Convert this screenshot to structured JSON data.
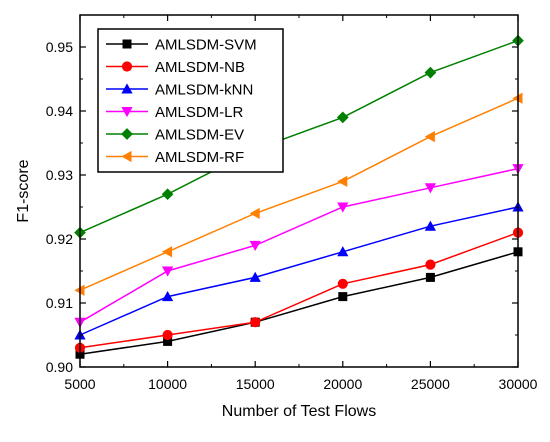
{
  "chart_data": {
    "type": "line",
    "title": "",
    "xlabel": "Number of Test Flows",
    "ylabel": "F1-score",
    "x": [
      5000,
      10000,
      15000,
      20000,
      25000,
      30000
    ],
    "xlim": [
      5000,
      30000
    ],
    "ylim": [
      0.9,
      0.955
    ],
    "x_ticks": [
      "5000",
      "10000",
      "15000",
      "20000",
      "25000",
      "30000"
    ],
    "y_ticks": [
      "0.90",
      "0.91",
      "0.92",
      "0.93",
      "0.94",
      "0.95"
    ],
    "grid": false,
    "legend_position": "top-left",
    "series": [
      {
        "name": "AMLSDM-SVM",
        "color": "#000000",
        "marker": "square",
        "values": [
          0.902,
          0.904,
          0.907,
          0.911,
          0.914,
          0.918
        ]
      },
      {
        "name": "AMLSDM-NB",
        "color": "#ff0000",
        "marker": "circle",
        "values": [
          0.903,
          0.905,
          0.907,
          0.913,
          0.916,
          0.921
        ]
      },
      {
        "name": "AMLSDM-kNN",
        "color": "#0000ff",
        "marker": "triangle-up",
        "values": [
          0.905,
          0.911,
          0.914,
          0.918,
          0.922,
          0.925
        ]
      },
      {
        "name": "AMLSDM-LR",
        "color": "#ff00ff",
        "marker": "triangle-down",
        "values": [
          0.907,
          0.915,
          0.919,
          0.925,
          0.928,
          0.931
        ]
      },
      {
        "name": "AMLSDM-EV",
        "color": "#008000",
        "marker": "diamond",
        "values": [
          0.921,
          0.927,
          0.934,
          0.939,
          0.946,
          0.951
        ]
      },
      {
        "name": "AMLSDM-RF",
        "color": "#ff8000",
        "marker": "triangle-left",
        "values": [
          0.912,
          0.918,
          0.924,
          0.929,
          0.936,
          0.942
        ]
      }
    ]
  }
}
